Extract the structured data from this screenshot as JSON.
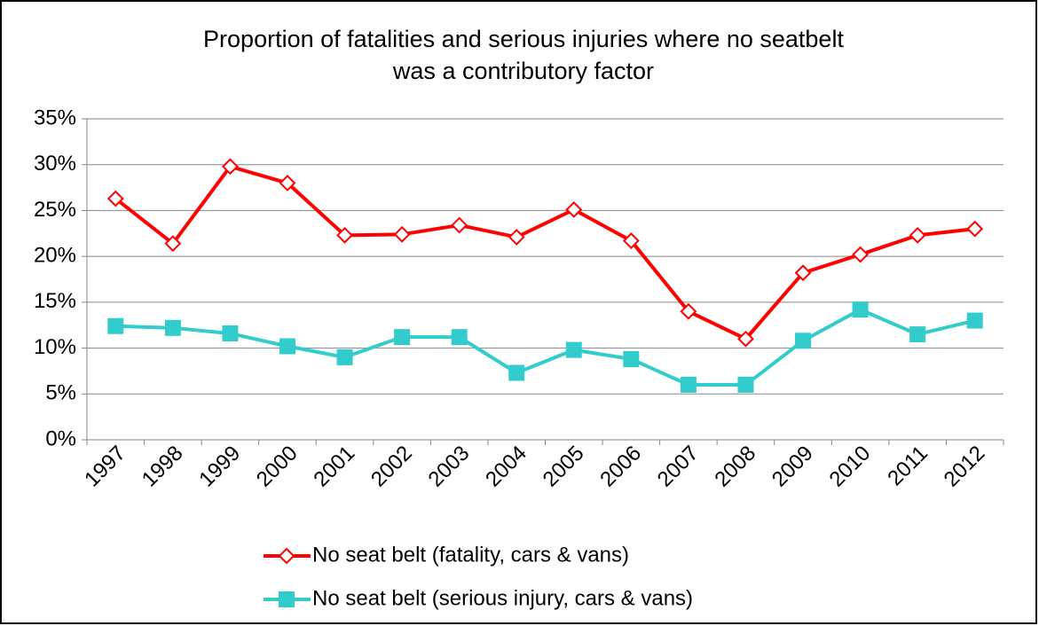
{
  "chart_data": {
    "type": "line",
    "title": [
      "Proportion of fatalities and serious injuries where no seatbelt",
      "was a contributory factor"
    ],
    "categories": [
      "1997",
      "1998",
      "1999",
      "2000",
      "2001",
      "2002",
      "2003",
      "2004",
      "2005",
      "2006",
      "2007",
      "2008",
      "2009",
      "2010",
      "2011",
      "2012"
    ],
    "series": [
      {
        "name": "No seat belt (fatality, cars & vans)",
        "color": "#ff0000",
        "marker": "diamond",
        "values": [
          26.3,
          21.4,
          29.8,
          28.0,
          22.3,
          22.4,
          23.4,
          22.1,
          25.1,
          21.7,
          14.0,
          11.0,
          18.2,
          20.2,
          22.3,
          23.0
        ]
      },
      {
        "name": "No seat belt (serious injury, cars & vans)",
        "color": "#33cccc",
        "marker": "square",
        "values": [
          12.4,
          12.2,
          11.6,
          10.2,
          9.0,
          11.2,
          11.2,
          7.3,
          9.8,
          8.8,
          6.0,
          6.0,
          10.8,
          14.2,
          11.5,
          13.0
        ]
      }
    ],
    "ylim": [
      0,
      35
    ],
    "yticks": [
      {
        "value": 0,
        "label": "0%"
      },
      {
        "value": 5,
        "label": "5%"
      },
      {
        "value": 10,
        "label": "10%"
      },
      {
        "value": 15,
        "label": "15%"
      },
      {
        "value": 20,
        "label": "20%"
      },
      {
        "value": 25,
        "label": "25%"
      },
      {
        "value": 30,
        "label": "30%"
      },
      {
        "value": 35,
        "label": "35%"
      }
    ],
    "grid": true,
    "legend": "bottom"
  }
}
